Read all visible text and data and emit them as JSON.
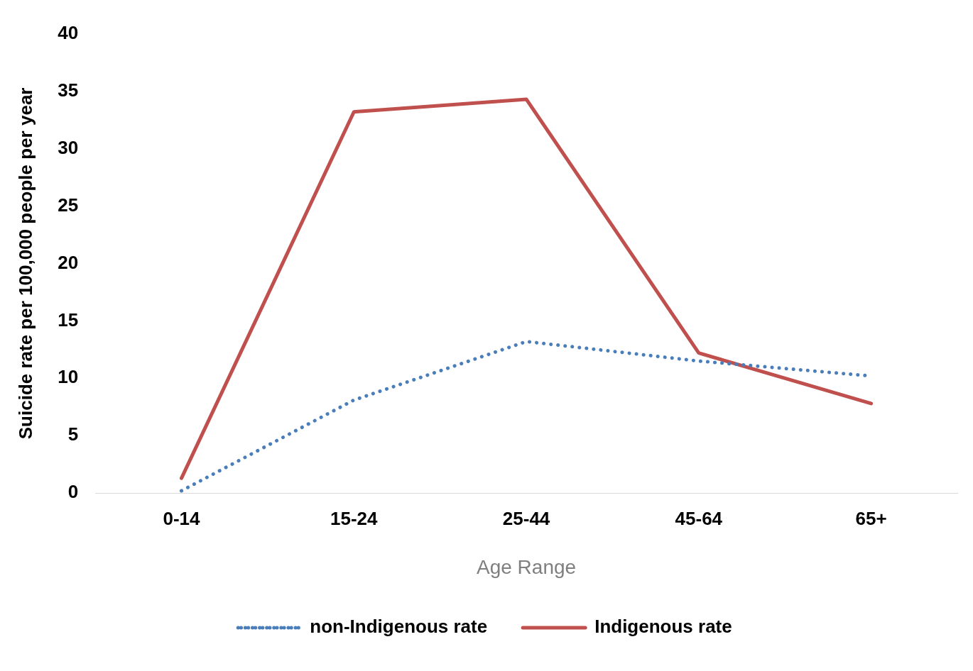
{
  "chart_data": {
    "type": "line",
    "xlabel": "Age Range",
    "ylabel": "Suicide rate per 100,000 people per year",
    "categories": [
      "0-14",
      "15-24",
      "25-44",
      "45-64",
      "65+"
    ],
    "series": [
      {
        "name": "non-Indigenous rate",
        "color": "#4a7ebb",
        "line_style": "dotted",
        "values": [
          0.2,
          8.1,
          13.2,
          11.5,
          10.2
        ]
      },
      {
        "name": "Indigenous rate",
        "color": "#c0504d",
        "line_style": "solid",
        "values": [
          1.3,
          33.2,
          34.3,
          12.2,
          7.8
        ]
      }
    ],
    "ylim": [
      0,
      40
    ],
    "yticks": [
      0,
      5,
      10,
      15,
      20,
      25,
      30,
      35,
      40
    ],
    "grid": false,
    "legend": "bottom",
    "marker": "none"
  }
}
